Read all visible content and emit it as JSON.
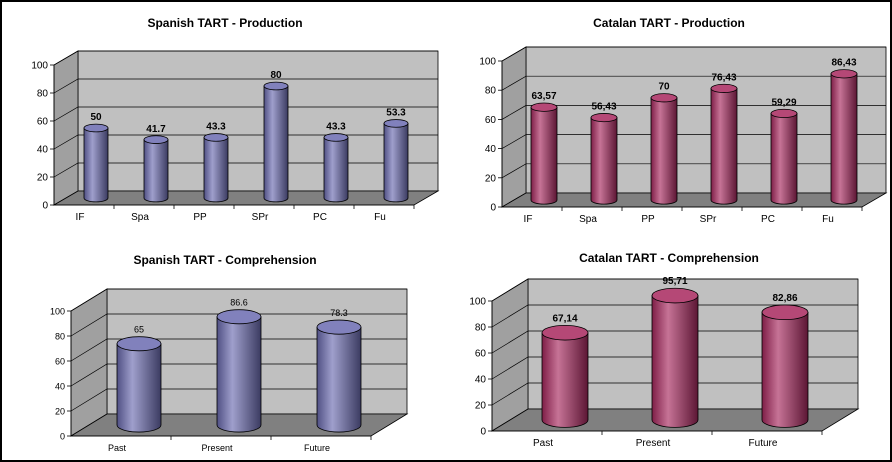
{
  "chart_data": [
    {
      "type": "bar",
      "title": "Spanish TART - Production",
      "categories": [
        "IF",
        "Spa",
        "PP",
        "SPr",
        "PC",
        "Fu"
      ],
      "values": [
        50,
        41.7,
        43.3,
        80,
        43.3,
        53.3
      ],
      "value_labels": [
        "50",
        "41.7",
        "43.3",
        "80",
        "43.3",
        "53.3"
      ],
      "ylim": [
        0,
        100
      ],
      "yticks": [
        "0",
        "20",
        "40",
        "60",
        "80",
        "100"
      ],
      "grid": true,
      "color": "#6b6bb0"
    },
    {
      "type": "bar",
      "title": "Catalan TART - Production",
      "categories": [
        "IF",
        "Spa",
        "PP",
        "SPr",
        "PC",
        "Fu"
      ],
      "values": [
        63.57,
        56.43,
        70,
        76.43,
        59.29,
        86.43
      ],
      "value_labels": [
        "63,57",
        "56,43",
        "70",
        "76,43",
        "59,29",
        "86,43"
      ],
      "ylim": [
        0,
        100
      ],
      "yticks": [
        "0",
        "20",
        "40",
        "60",
        "80",
        "100"
      ],
      "grid": true,
      "color": "#a8285e"
    },
    {
      "type": "bar",
      "title": "Spanish TART - Comprehension",
      "categories": [
        "Past",
        "Present",
        "Future"
      ],
      "values": [
        65,
        86.6,
        78.3
      ],
      "value_labels": [
        "65",
        "86.6",
        "78.3"
      ],
      "ylim": [
        0,
        100
      ],
      "yticks": [
        "0",
        "20",
        "40",
        "60",
        "80",
        "100"
      ],
      "grid": true,
      "color": "#6b6bb0"
    },
    {
      "type": "bar",
      "title": "Catalan TART - Comprehension",
      "categories": [
        "Past",
        "Present",
        "Future"
      ],
      "values": [
        67.14,
        95.71,
        82.86
      ],
      "value_labels": [
        "67,14",
        "95,71",
        "82,86"
      ],
      "ylim": [
        0,
        100
      ],
      "yticks": [
        "0",
        "20",
        "40",
        "60",
        "80",
        "100"
      ],
      "grid": true,
      "color": "#a8285e"
    }
  ]
}
